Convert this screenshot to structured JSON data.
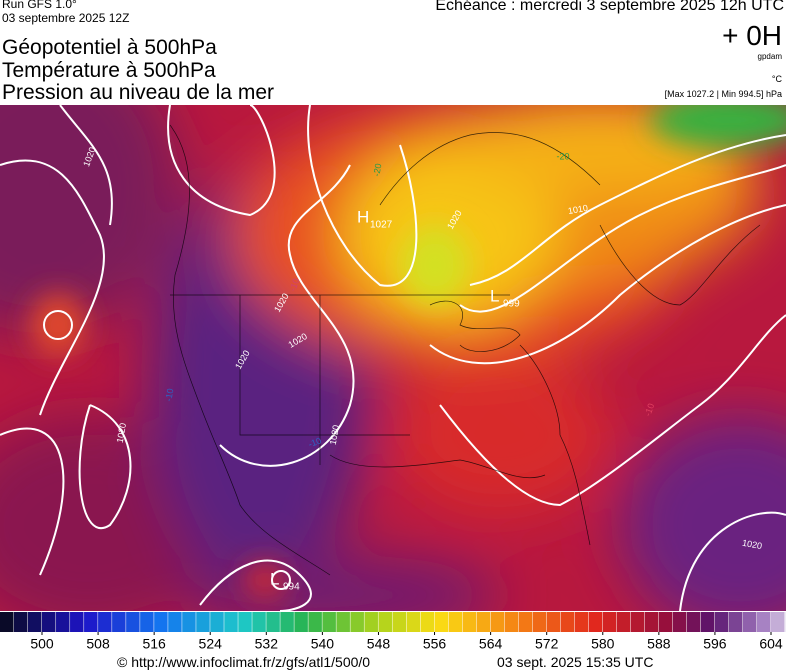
{
  "header": {
    "run": "Run GFS 1.0°",
    "date": "03 septembre 2025 12Z",
    "echeance": "Echéance : mercredi 3 septembre 2025 12h UTC",
    "lead": "+ 0H",
    "unit_geo": "gpdam",
    "unit_temp": "°C",
    "range": "[Max 1027.2 | Min 994.5] hPa",
    "title_geo": "Géopotentiel à 500hPa",
    "title_temp": "Température à 500hPa",
    "title_pressure": "Pression au niveau de la mer"
  },
  "map": {
    "centers": [
      {
        "symbol": "H",
        "value": "1027"
      },
      {
        "symbol": "L",
        "value": "999"
      },
      {
        "symbol": "L",
        "value": "994"
      }
    ],
    "contour_labels": [
      "1020",
      "1020",
      "1020",
      "1020",
      "1020",
      "1020",
      "1020",
      "1010",
      "1020",
      "-20",
      "-20",
      "-10",
      "-10",
      "-10",
      "-10"
    ]
  },
  "colorbar": {
    "ticks": [
      500,
      508,
      516,
      524,
      532,
      540,
      548,
      556,
      564,
      572,
      580,
      588,
      596,
      604
    ]
  },
  "footer": {
    "url": "© http://www.infoclimat.fr/z/gfs/atl1/500/0",
    "generated": "03 sept. 2025 15:35 UTC"
  }
}
